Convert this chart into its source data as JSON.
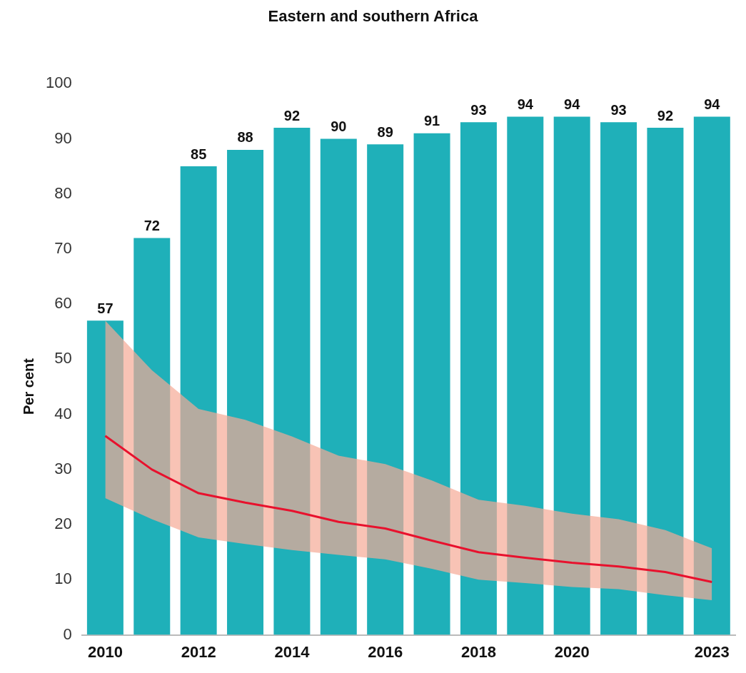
{
  "chart_data": {
    "type": "bar",
    "title": "Eastern and southern Africa",
    "ylabel": "Per cent",
    "categories": [
      "2010",
      null,
      "2012",
      null,
      "2014",
      null,
      "2016",
      null,
      "2018",
      null,
      "2020",
      null,
      null,
      "2023"
    ],
    "series": [
      {
        "color": "#1fb0b9",
        "values": [
          57,
          72,
          85,
          88,
          92,
          90,
          89,
          91,
          93,
          94,
          94,
          93,
          92,
          94
        ],
        "value_labels": [
          "57",
          "72",
          "85",
          "88",
          "92",
          "90",
          "89",
          "91",
          "93",
          "94",
          "94",
          "93",
          "92",
          "94"
        ]
      },
      {
        "type": "line",
        "color": "#e8112d",
        "values": [
          36.1,
          30,
          25.7,
          24,
          22.5,
          20.5,
          19.3,
          17.1,
          15,
          14,
          13.1,
          12.4,
          11.4,
          9.6
        ],
        "lower": [
          24.8,
          21,
          17.7,
          16.5,
          15.4,
          14.5,
          13.7,
          12,
          10,
          9.4,
          8.7,
          8.3,
          7.2,
          6.3
        ],
        "upper": [
          57,
          48,
          41,
          39,
          36,
          32.5,
          31,
          28,
          24.5,
          23.4,
          22,
          21,
          19,
          15.7
        ]
      }
    ],
    "ylim": [
      0,
      100
    ],
    "yticks": [
      0,
      10,
      20,
      30,
      40,
      50,
      60,
      70,
      80,
      90,
      100
    ],
    "grid": false,
    "marker": "none",
    "line_style": "solid"
  }
}
